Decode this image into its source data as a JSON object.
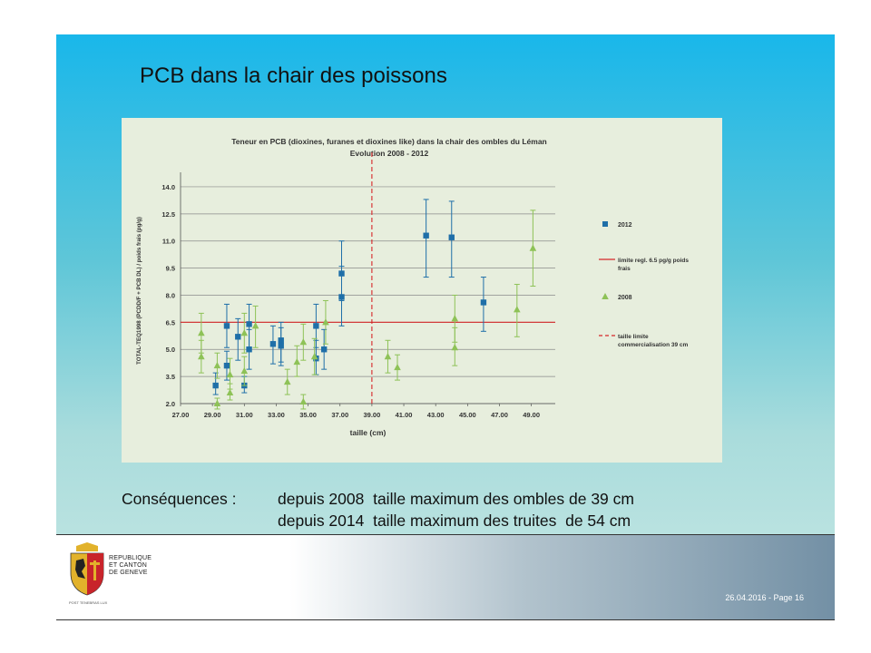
{
  "slide": {
    "title": "PCB dans la chair des poissons",
    "consequences": {
      "label": "Conséquences :",
      "lines": [
        "depuis 2008  taille maximum des ombles de 39 cm",
        "depuis 2014  taille maximum des truites  de 54 cm"
      ]
    }
  },
  "footer": {
    "org_lines": [
      "REPUBLIQUE",
      "ET CANTON",
      "DE GENEVE"
    ],
    "small_text": "POST TENEBRAS LUX",
    "page_info": "26.04.2016 - Page 16"
  },
  "chart_data": {
    "type": "scatter",
    "title": "Teneur en PCB (dioxines, furanes et dioxines like) dans la chair des ombles du Léman",
    "subtitle": "Evolution 2008 - 2012",
    "xlabel": "taille (cm)",
    "ylabel": "TOTAL-TEQ1998 (PCDD/F + PCB DL) / poids frais (pg/g)",
    "xlim": [
      27,
      50.5
    ],
    "ylim": [
      2,
      14.5
    ],
    "xticks": [
      "27.00",
      "29.00",
      "31.00",
      "33.00",
      "35.00",
      "37.00",
      "39.00",
      "41.00",
      "43.00",
      "45.00",
      "47.00",
      "49.00"
    ],
    "yticks": [
      "2.0",
      "3.5",
      "5.0",
      "6.5",
      "8.0",
      "9.5",
      "11.0",
      "12.5",
      "14.0"
    ],
    "grid": true,
    "legend_position": "right",
    "series": [
      {
        "name": "2012",
        "color": "#1f6fa8",
        "marker": "square",
        "points": [
          {
            "x": 29.2,
            "y": 3.0,
            "lo": 2.5,
            "hi": 3.7
          },
          {
            "x": 29.9,
            "y": 4.1,
            "lo": 3.3,
            "hi": 4.9
          },
          {
            "x": 29.9,
            "y": 6.3,
            "lo": 5.1,
            "hi": 7.5
          },
          {
            "x": 30.6,
            "y": 5.7,
            "lo": 4.4,
            "hi": 6.7
          },
          {
            "x": 31.0,
            "y": 3.0,
            "lo": 2.6,
            "hi": 3.5
          },
          {
            "x": 31.3,
            "y": 6.4,
            "lo": 5.1,
            "hi": 7.5
          },
          {
            "x": 31.3,
            "y": 5.0,
            "lo": 3.9,
            "hi": 6.1
          },
          {
            "x": 32.8,
            "y": 5.3,
            "lo": 4.2,
            "hi": 6.3
          },
          {
            "x": 33.3,
            "y": 5.5,
            "lo": 4.3,
            "hi": 6.5
          },
          {
            "x": 33.3,
            "y": 5.2,
            "lo": 4.1,
            "hi": 6.2
          },
          {
            "x": 35.5,
            "y": 6.3,
            "lo": 5.1,
            "hi": 7.5
          },
          {
            "x": 35.5,
            "y": 4.5,
            "lo": 3.6,
            "hi": 5.5
          },
          {
            "x": 36.0,
            "y": 5.0,
            "lo": 3.9,
            "hi": 6.1
          },
          {
            "x": 37.1,
            "y": 9.2,
            "lo": 7.7,
            "hi": 11.0
          },
          {
            "x": 37.1,
            "y": 7.9,
            "lo": 6.3,
            "hi": 9.6
          },
          {
            "x": 42.4,
            "y": 11.3,
            "lo": 9.0,
            "hi": 13.3
          },
          {
            "x": 44.0,
            "y": 11.2,
            "lo": 9.0,
            "hi": 13.2
          },
          {
            "x": 46.0,
            "y": 7.6,
            "lo": 6.0,
            "hi": 9.0
          }
        ]
      },
      {
        "name": "2008",
        "color": "#8ec257",
        "marker": "triangle",
        "points": [
          {
            "x": 28.3,
            "y": 5.9,
            "lo": 4.8,
            "hi": 7.0
          },
          {
            "x": 28.3,
            "y": 4.6,
            "lo": 3.7,
            "hi": 5.5
          },
          {
            "x": 29.3,
            "y": 4.1,
            "lo": 3.4,
            "hi": 4.8
          },
          {
            "x": 29.3,
            "y": 2.0,
            "lo": 1.7,
            "hi": 2.3
          },
          {
            "x": 30.1,
            "y": 3.6,
            "lo": 2.8,
            "hi": 4.5
          },
          {
            "x": 30.1,
            "y": 2.6,
            "lo": 2.2,
            "hi": 3.1
          },
          {
            "x": 31.0,
            "y": 5.9,
            "lo": 4.8,
            "hi": 7.0
          },
          {
            "x": 31.0,
            "y": 3.8,
            "lo": 3.0,
            "hi": 4.6
          },
          {
            "x": 31.7,
            "y": 6.3,
            "lo": 5.1,
            "hi": 7.4
          },
          {
            "x": 33.7,
            "y": 3.2,
            "lo": 2.5,
            "hi": 3.9
          },
          {
            "x": 34.3,
            "y": 4.3,
            "lo": 3.5,
            "hi": 5.2
          },
          {
            "x": 34.7,
            "y": 5.4,
            "lo": 4.4,
            "hi": 6.4
          },
          {
            "x": 34.7,
            "y": 2.1,
            "lo": 1.7,
            "hi": 2.5
          },
          {
            "x": 35.4,
            "y": 4.6,
            "lo": 3.6,
            "hi": 5.6
          },
          {
            "x": 36.1,
            "y": 6.5,
            "lo": 5.3,
            "hi": 7.7
          },
          {
            "x": 40.0,
            "y": 4.6,
            "lo": 3.7,
            "hi": 5.5
          },
          {
            "x": 40.6,
            "y": 4.0,
            "lo": 3.3,
            "hi": 4.7
          },
          {
            "x": 44.2,
            "y": 6.7,
            "lo": 5.4,
            "hi": 8.0
          },
          {
            "x": 44.2,
            "y": 5.1,
            "lo": 4.1,
            "hi": 6.2
          },
          {
            "x": 48.1,
            "y": 7.2,
            "lo": 5.7,
            "hi": 8.6
          },
          {
            "x": 49.1,
            "y": 10.6,
            "lo": 8.5,
            "hi": 12.7
          }
        ]
      }
    ],
    "reference_lines": [
      {
        "name": "limite regl. 6.5 pg/g poids frais",
        "axis": "y",
        "value": 6.5,
        "color": "#d62728",
        "style": "solid"
      },
      {
        "name": "taille limite commercialisation 39 cm",
        "axis": "x",
        "value": 39,
        "color": "#d62728",
        "style": "dashed"
      }
    ],
    "legend": [
      {
        "label": "2012",
        "kind": "square"
      },
      {
        "label": "limite regl. 6.5 pg/g poids frais",
        "kind": "solid-line"
      },
      {
        "label": "2008",
        "kind": "triangle"
      },
      {
        "label": "taille limite commercialisation 39 cm",
        "kind": "dashed-line"
      }
    ]
  }
}
